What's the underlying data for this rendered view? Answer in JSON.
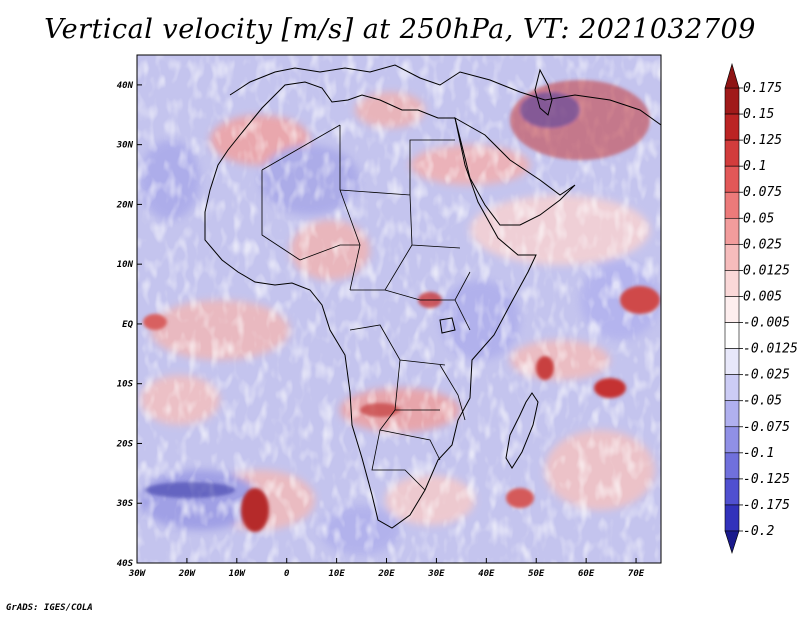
{
  "title": "Vertical velocity [m/s] at 250hPa, VT: 2021032709",
  "credit": "GrADS: IGES/COLA",
  "map": {
    "lon_range": [
      -30,
      75
    ],
    "lat_range": [
      -40,
      45
    ],
    "lon_ticks": [
      {
        "value": -30,
        "label": "30W"
      },
      {
        "value": -20,
        "label": "20W"
      },
      {
        "value": -10,
        "label": "10W"
      },
      {
        "value": 0,
        "label": "0"
      },
      {
        "value": 10,
        "label": "10E"
      },
      {
        "value": 20,
        "label": "20E"
      },
      {
        "value": 30,
        "label": "30E"
      },
      {
        "value": 40,
        "label": "40E"
      },
      {
        "value": 50,
        "label": "50E"
      },
      {
        "value": 60,
        "label": "60E"
      },
      {
        "value": 70,
        "label": "70E"
      }
    ],
    "lat_ticks": [
      {
        "value": 40,
        "label": "40N"
      },
      {
        "value": 30,
        "label": "30N"
      },
      {
        "value": 20,
        "label": "20N"
      },
      {
        "value": 10,
        "label": "10N"
      },
      {
        "value": 0,
        "label": "EQ"
      },
      {
        "value": -10,
        "label": "10S"
      },
      {
        "value": -20,
        "label": "20S"
      },
      {
        "value": -30,
        "label": "30S"
      },
      {
        "value": -40,
        "label": "40S"
      }
    ]
  },
  "colorbar": {
    "levels": [
      {
        "label": "0.175",
        "color": "#a01a1a"
      },
      {
        "label": "0.15",
        "color": "#bb2424"
      },
      {
        "label": "0.125",
        "color": "#d23c3c"
      },
      {
        "label": "0.1",
        "color": "#e25858"
      },
      {
        "label": "0.075",
        "color": "#ec7a7a"
      },
      {
        "label": "0.05",
        "color": "#f29c9c"
      },
      {
        "label": "0.025",
        "color": "#f6bcbc"
      },
      {
        "label": "0.0125",
        "color": "#fad8d8"
      },
      {
        "label": "0.005",
        "color": "#fdeeee"
      },
      {
        "label": "-0.005",
        "color": "#ffffff"
      },
      {
        "label": "-0.0125",
        "color": "#e8e8fa"
      },
      {
        "label": "-0.025",
        "color": "#ccccf5"
      },
      {
        "label": "-0.05",
        "color": "#b0b0ef"
      },
      {
        "label": "-0.075",
        "color": "#9090e6"
      },
      {
        "label": "-0.1",
        "color": "#7070dc"
      },
      {
        "label": "-0.125",
        "color": "#5050d0"
      },
      {
        "label": "-0.175",
        "color": "#3232bb"
      },
      {
        "label": "-0.2",
        "color": "#1e1ea0"
      }
    ],
    "top_color": "#8e1414",
    "bottom_color": "#1a1a8c"
  }
}
